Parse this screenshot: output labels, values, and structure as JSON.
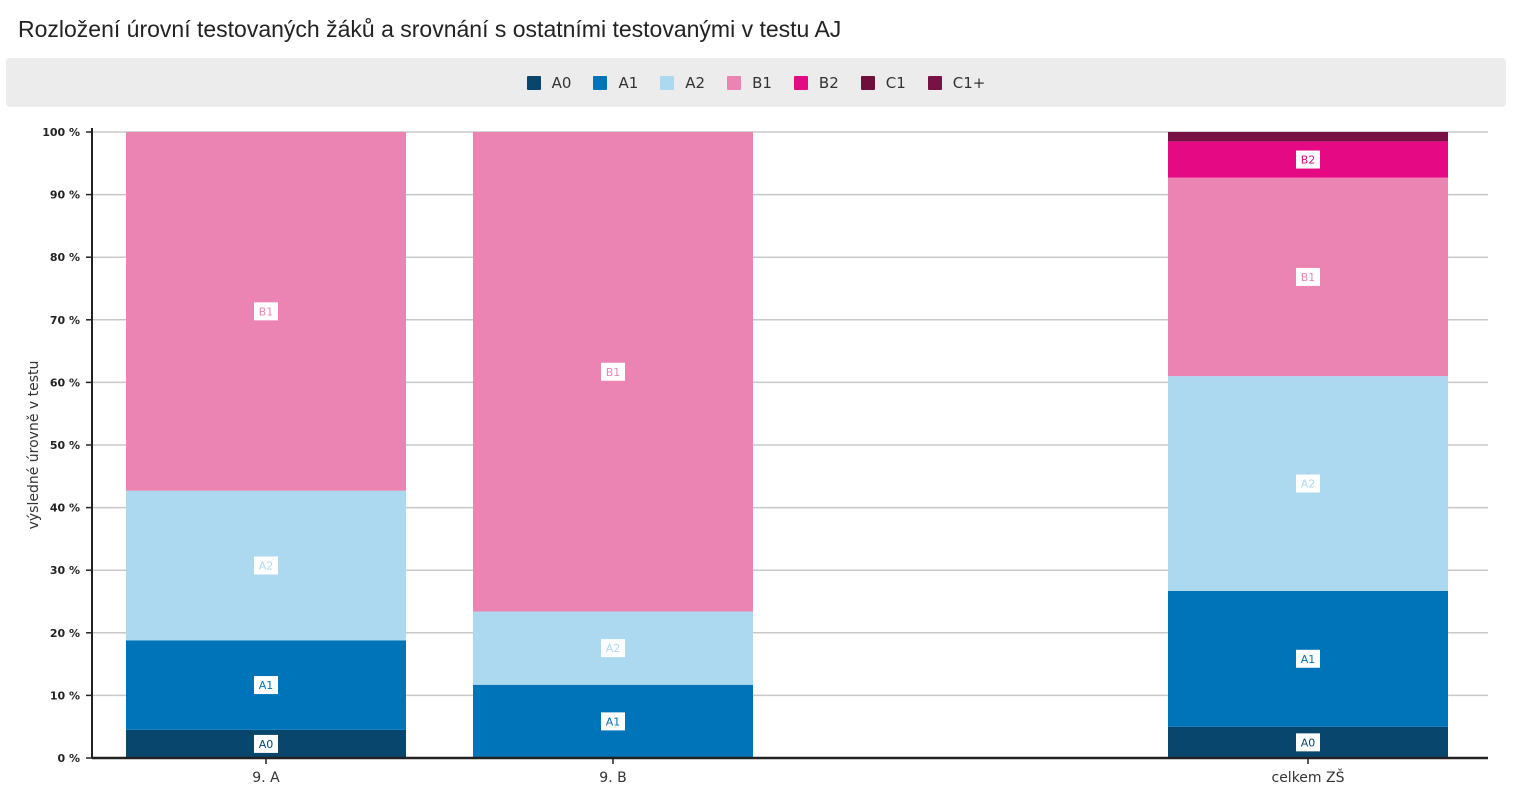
{
  "chart_data": {
    "type": "bar",
    "stacked": true,
    "title": "Rozložení úrovní testovaných žáků a srovnání s ostatními testovanými v testu AJ",
    "xlabel": "",
    "ylabel": "výsledné úrovně v testu",
    "ylim": [
      0,
      100
    ],
    "yticks": [
      "0 %",
      "10 %",
      "20 %",
      "30 %",
      "40 %",
      "50 %",
      "60 %",
      "70 %",
      "80 %",
      "90 %",
      "100 %"
    ],
    "grid": true,
    "legend_position": "top",
    "categories": [
      "9. A",
      "9. B",
      "celkem ZŠ"
    ],
    "series": [
      {
        "name": "A0",
        "color": "#08466e",
        "values": [
          4.5,
          0,
          5
        ]
      },
      {
        "name": "A1",
        "color": "#0074b8",
        "values": [
          14.3,
          11.7,
          21.7
        ]
      },
      {
        "name": "A2",
        "color": "#add9f0",
        "values": [
          23.9,
          11.7,
          34.3
        ]
      },
      {
        "name": "B1",
        "color": "#eb84b3",
        "values": [
          57.3,
          76.6,
          31.7
        ]
      },
      {
        "name": "B2",
        "color": "#e50a83",
        "values": [
          0,
          0,
          5.8
        ]
      },
      {
        "name": "C1",
        "color": "#6e0f3b",
        "values": [
          0,
          0,
          0
        ]
      },
      {
        "name": "C1+",
        "color": "#7a1145",
        "values": [
          0,
          0,
          1.5
        ]
      }
    ]
  }
}
